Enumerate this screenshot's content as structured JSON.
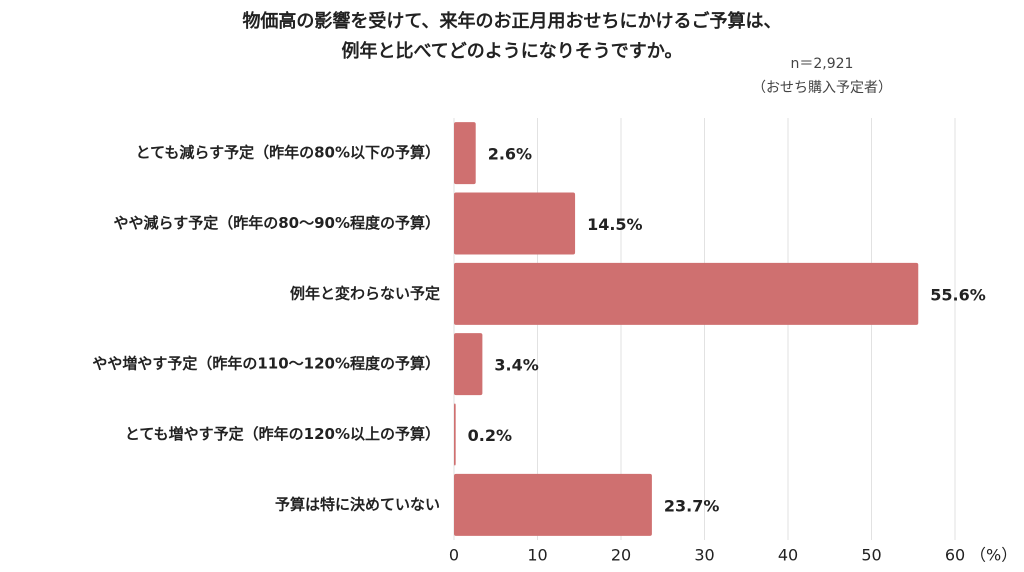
{
  "chart_data": {
    "type": "bar",
    "orientation": "horizontal",
    "title": [
      "物価高の影響を受けて、来年のお正月用おせちにかけるご予算は、",
      "例年と比べてどのようになりそうですか。"
    ],
    "annotations": [
      "n＝2,921",
      "（おせち購入予定者）"
    ],
    "x_label": "（%）",
    "categories": [
      "とても減らす予定（昨年の80%以下の予算）",
      "やや減らす予定（昨年の80～90%程度の予算）",
      "例年と変わらない予定",
      "やや増やす予定（昨年の110～120%程度の予算）",
      "とても増やす予定（昨年の120%以上の予算）",
      "予算は特に決めていない"
    ],
    "values": [
      2.6,
      14.5,
      55.6,
      3.4,
      0.2,
      23.7
    ],
    "value_labels": [
      "2.6%",
      "14.5%",
      "55.6%",
      "3.4%",
      "0.2%",
      "23.7%"
    ],
    "color": "#cf7070",
    "xlim": [
      0,
      60
    ],
    "xticks": [
      0,
      10,
      20,
      30,
      40,
      50,
      60
    ],
    "grid": true
  }
}
